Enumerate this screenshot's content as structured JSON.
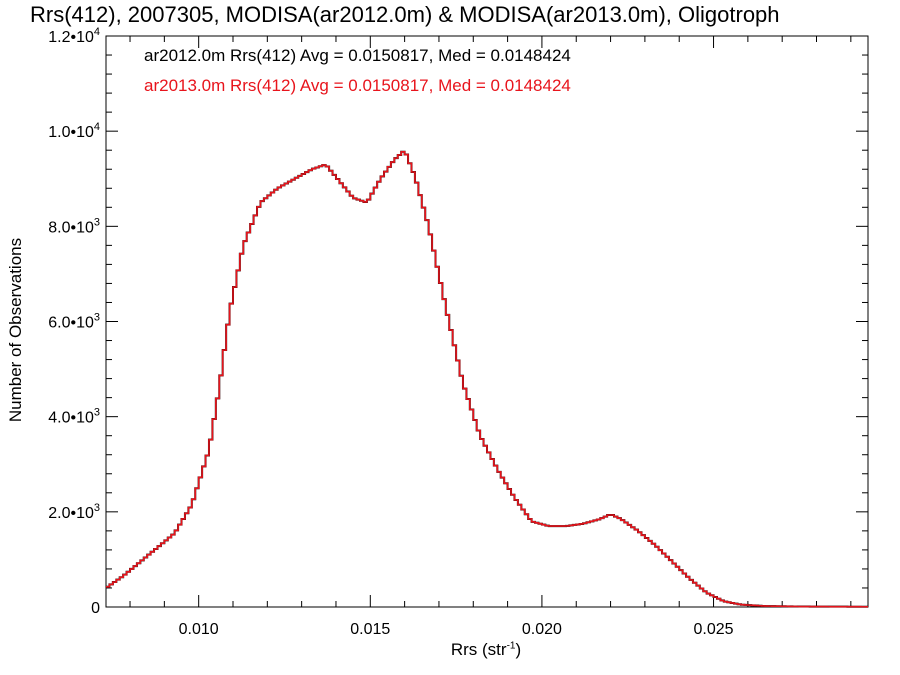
{
  "chart_data": {
    "type": "line",
    "title": "Rrs(412), 2007305, MODISA(ar2012.0m) & MODISA(ar2013.0m), Oligotroph",
    "xlabel": "Rrs (str",
    "xlabel_sup": "-1",
    "xlabel_close": ")",
    "ylabel": "Number of Observations",
    "xlim": [
      0.0073,
      0.0295
    ],
    "ylim": [
      0,
      12000
    ],
    "x_ticks": [
      {
        "value": 0.01,
        "label": "0.010"
      },
      {
        "value": 0.015,
        "label": "0.015"
      },
      {
        "value": 0.02,
        "label": "0.020"
      },
      {
        "value": 0.025,
        "label": "0.025"
      }
    ],
    "y_ticks": [
      {
        "value": 0,
        "mant": "0",
        "exp": ""
      },
      {
        "value": 2000,
        "mant": "2.0•10",
        "exp": "3"
      },
      {
        "value": 4000,
        "mant": "4.0•10",
        "exp": "3"
      },
      {
        "value": 6000,
        "mant": "6.0•10",
        "exp": "3"
      },
      {
        "value": 8000,
        "mant": "8.0•10",
        "exp": "3"
      },
      {
        "value": 10000,
        "mant": "1.0•10",
        "exp": "4"
      },
      {
        "value": 12000,
        "mant": "1.2•10",
        "exp": "4"
      }
    ],
    "stats": [
      "ar2012.0m Rrs(412) Avg = 0.0150817, Med = 0.0148424",
      "ar2013.0m Rrs(412) Avg = 0.0150817, Med = 0.0148424"
    ],
    "series": [
      {
        "name": "ar2012.0m",
        "color": "#000000",
        "points": [
          [
            0.0073,
            400
          ],
          [
            0.0078,
            650
          ],
          [
            0.0083,
            950
          ],
          [
            0.0088,
            1250
          ],
          [
            0.0093,
            1550
          ],
          [
            0.0098,
            2150
          ],
          [
            0.0103,
            3300
          ],
          [
            0.0106,
            4600
          ],
          [
            0.0109,
            6200
          ],
          [
            0.0113,
            7600
          ],
          [
            0.0118,
            8500
          ],
          [
            0.0123,
            8800
          ],
          [
            0.0128,
            9000
          ],
          [
            0.0133,
            9200
          ],
          [
            0.0137,
            9300
          ],
          [
            0.0141,
            8950
          ],
          [
            0.0145,
            8600
          ],
          [
            0.0149,
            8500
          ],
          [
            0.0153,
            9000
          ],
          [
            0.0157,
            9400
          ],
          [
            0.016,
            9600
          ],
          [
            0.0163,
            9050
          ],
          [
            0.0167,
            8000
          ],
          [
            0.0172,
            6300
          ],
          [
            0.0177,
            4700
          ],
          [
            0.0182,
            3600
          ],
          [
            0.0187,
            2900
          ],
          [
            0.0192,
            2300
          ],
          [
            0.0197,
            1800
          ],
          [
            0.0202,
            1700
          ],
          [
            0.0207,
            1700
          ],
          [
            0.0212,
            1750
          ],
          [
            0.0217,
            1850
          ],
          [
            0.022,
            1950
          ],
          [
            0.0223,
            1850
          ],
          [
            0.0228,
            1600
          ],
          [
            0.0233,
            1300
          ],
          [
            0.0238,
            950
          ],
          [
            0.0243,
            600
          ],
          [
            0.0248,
            300
          ],
          [
            0.0253,
            120
          ],
          [
            0.0258,
            50
          ],
          [
            0.0265,
            20
          ],
          [
            0.0275,
            10
          ],
          [
            0.0295,
            5
          ]
        ]
      },
      {
        "name": "ar2013.0m",
        "color": "#e8141c",
        "points": [
          [
            0.0073,
            400
          ],
          [
            0.0078,
            650
          ],
          [
            0.0083,
            950
          ],
          [
            0.0088,
            1250
          ],
          [
            0.0093,
            1550
          ],
          [
            0.0098,
            2150
          ],
          [
            0.0103,
            3300
          ],
          [
            0.0106,
            4600
          ],
          [
            0.0109,
            6200
          ],
          [
            0.0113,
            7600
          ],
          [
            0.0118,
            8500
          ],
          [
            0.0123,
            8800
          ],
          [
            0.0128,
            9000
          ],
          [
            0.0133,
            9200
          ],
          [
            0.0137,
            9300
          ],
          [
            0.0141,
            8950
          ],
          [
            0.0145,
            8600
          ],
          [
            0.0149,
            8500
          ],
          [
            0.0153,
            9000
          ],
          [
            0.0157,
            9400
          ],
          [
            0.016,
            9600
          ],
          [
            0.0163,
            9050
          ],
          [
            0.0167,
            8000
          ],
          [
            0.0172,
            6300
          ],
          [
            0.0177,
            4700
          ],
          [
            0.0182,
            3600
          ],
          [
            0.0187,
            2900
          ],
          [
            0.0192,
            2300
          ],
          [
            0.0197,
            1800
          ],
          [
            0.0202,
            1700
          ],
          [
            0.0207,
            1700
          ],
          [
            0.0212,
            1750
          ],
          [
            0.0217,
            1850
          ],
          [
            0.022,
            1950
          ],
          [
            0.0223,
            1850
          ],
          [
            0.0228,
            1600
          ],
          [
            0.0233,
            1300
          ],
          [
            0.0238,
            950
          ],
          [
            0.0243,
            600
          ],
          [
            0.0248,
            300
          ],
          [
            0.0253,
            120
          ],
          [
            0.0258,
            50
          ],
          [
            0.0265,
            20
          ],
          [
            0.0275,
            10
          ],
          [
            0.0295,
            5
          ]
        ]
      }
    ]
  }
}
